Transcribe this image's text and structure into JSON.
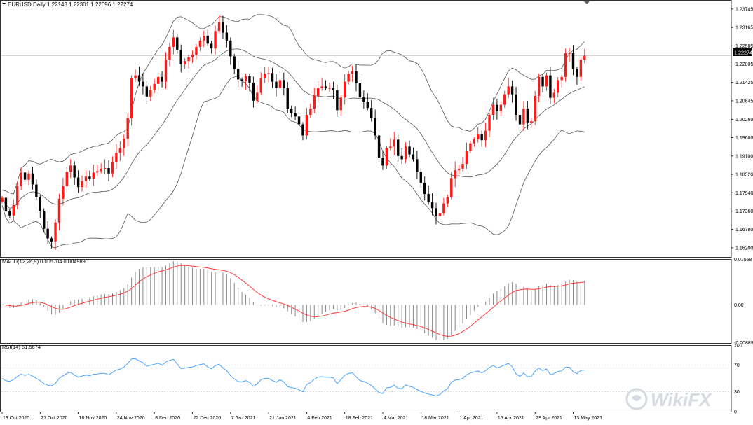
{
  "chart_data": {
    "type": "candlestick",
    "symbol_header": "EURUSD,Daily  1.22143 1.22301 1.22096 1.22274",
    "current_price": "1.22274",
    "colors": {
      "bull": "#ff1a1a",
      "bear": "#000000",
      "bands": "#555555",
      "macd_signal": "#ff3b3b",
      "macd_hist": "#8a8a8a",
      "rsi": "#4aa3ff",
      "grid_line": "#c8c8c8",
      "frame": "#000000",
      "tag_bg": "#000000",
      "tag_fg": "#ffffff"
    },
    "price_axis": {
      "ylim": [
        1.1591,
        1.2403
      ],
      "ticks": [
        "1.23745",
        "1.23165",
        "1.22585",
        "1.22005",
        "1.21425",
        "1.20845",
        "1.20260",
        "1.19680",
        "1.19100",
        "1.18520",
        "1.17940",
        "1.17360",
        "1.16780",
        "1.16200"
      ]
    },
    "x_labels": [
      {
        "i": 0,
        "label": "13 Oct 2020"
      },
      {
        "i": 10,
        "label": "27 Oct 2020"
      },
      {
        "i": 20,
        "label": "10 Nov 2020"
      },
      {
        "i": 30,
        "label": "24 Nov 2020"
      },
      {
        "i": 40,
        "label": "8 Dec 2020"
      },
      {
        "i": 50,
        "label": "22 Dec 2020"
      },
      {
        "i": 60,
        "label": "7 Jan 2021"
      },
      {
        "i": 70,
        "label": "21 Jan 2021"
      },
      {
        "i": 80,
        "label": "4 Feb 2021"
      },
      {
        "i": 90,
        "label": "18 Feb 2021"
      },
      {
        "i": 100,
        "label": "4 Mar 2021"
      },
      {
        "i": 110,
        "label": "18 Mar 2021"
      },
      {
        "i": 120,
        "label": "1 Apr 2021"
      },
      {
        "i": 130,
        "label": "15 Apr 2021"
      },
      {
        "i": 140,
        "label": "29 Apr 2021"
      },
      {
        "i": 150,
        "label": "13 May 2021"
      }
    ],
    "closes": [
      1.1778,
      1.1735,
      1.1722,
      1.1755,
      1.1815,
      1.1858,
      1.1835,
      1.1855,
      1.182,
      1.178,
      1.1735,
      1.168,
      1.165,
      1.164,
      1.17,
      1.1775,
      1.1815,
      1.186,
      1.188,
      1.1842,
      1.1812,
      1.183,
      1.1845,
      1.1838,
      1.1858,
      1.1862,
      1.187,
      1.1872,
      1.1855,
      1.189,
      1.192,
      1.1935,
      1.1965,
      1.203,
      1.2155,
      1.2165,
      1.2145,
      1.213,
      1.2098,
      1.212,
      1.2138,
      1.216,
      1.2145,
      1.2215,
      1.2255,
      1.2285,
      1.2245,
      1.22,
      1.221,
      1.2222,
      1.223,
      1.2255,
      1.2275,
      1.229,
      1.2265,
      1.225,
      1.2305,
      1.2332,
      1.23,
      1.2275,
      1.2225,
      1.2185,
      1.2152,
      1.2148,
      1.2162,
      1.2142,
      1.2085,
      1.211,
      1.2155,
      1.217,
      1.2172,
      1.2145,
      1.2125,
      1.215,
      1.2125,
      1.206,
      1.2045,
      1.2035,
      1.201,
      1.1975,
      1.204,
      1.206,
      1.21,
      1.2125,
      1.213,
      1.2125,
      1.2125,
      1.2118,
      1.2055,
      1.2095,
      1.2145,
      1.217,
      1.2178,
      1.214,
      1.2095,
      1.2082,
      1.2062,
      1.203,
      1.1975,
      1.1905,
      1.188,
      1.1935,
      1.194,
      1.1962,
      1.191,
      1.19,
      1.194,
      1.1915,
      1.19,
      1.186,
      1.1825,
      1.179,
      1.1765,
      1.1745,
      1.172,
      1.173,
      1.176,
      1.178,
      1.184,
      1.1865,
      1.187,
      1.1885,
      1.1925,
      1.195,
      1.1963,
      1.1978,
      1.196,
      1.199,
      1.204,
      1.2072,
      1.2052,
      1.2072,
      1.2105,
      1.213,
      1.2105,
      1.204,
      1.201,
      1.206,
      1.2016,
      1.202,
      1.21,
      1.216,
      1.213,
      1.2165,
      1.2094,
      1.211,
      1.215,
      1.216,
      1.2235,
      1.2235,
      1.2185,
      1.216,
      1.2215,
      1.2227
    ],
    "macd": {
      "label": "MACD(12,26,9) 0.005704 0.004989",
      "ylim": [
        -0.00895,
        0.0107
      ],
      "ticks": [
        "0.01058",
        "0.00",
        "-0.008894"
      ]
    },
    "rsi": {
      "label": "RSI(14) 61.5674",
      "levels": [
        "100",
        "70",
        "30",
        "0"
      ]
    },
    "watermark": "WikiFX"
  }
}
